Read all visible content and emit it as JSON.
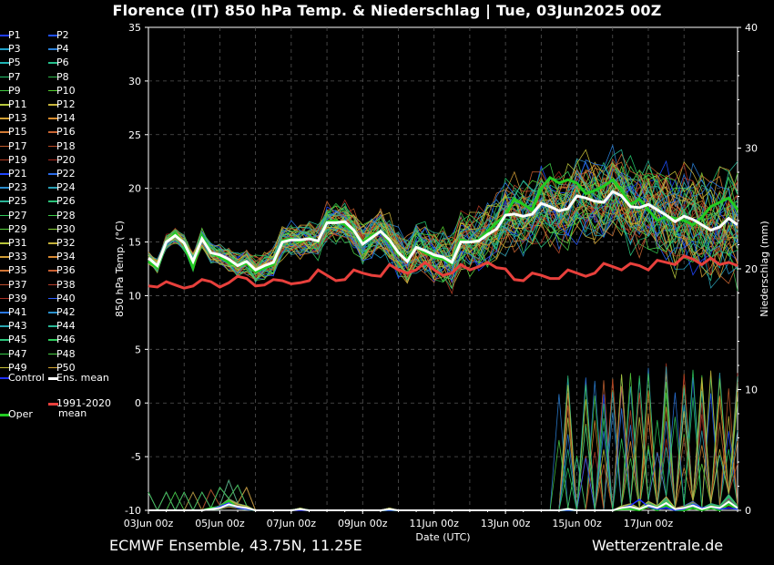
{
  "title": "Florence  (IT)  850 hPa Temp. & Niederschlag | Tue, 03Jun2025 00Z",
  "footer": {
    "source": "ECMWF Ensemble, 43.75N, 11.25E",
    "brand": "Wetterzentrale.de"
  },
  "legend": {
    "members": [
      "P1",
      "P2",
      "P3",
      "P4",
      "P5",
      "P6",
      "P7",
      "P8",
      "P9",
      "P10",
      "P11",
      "P12",
      "P13",
      "P14",
      "P15",
      "P16",
      "P17",
      "P18",
      "P19",
      "P20",
      "P21",
      "P22",
      "P23",
      "P24",
      "P25",
      "P26",
      "P27",
      "P28",
      "P29",
      "P30",
      "P31",
      "P32",
      "P33",
      "P34",
      "P35",
      "P36",
      "P37",
      "P38",
      "P39",
      "P40",
      "P41",
      "P42",
      "P43",
      "P44",
      "P45",
      "P46",
      "P47",
      "P48",
      "P49",
      "P50"
    ],
    "control": "Control",
    "ens_mean": "Ens. mean",
    "climate_line1": "1991-2020",
    "climate_line2": "mean",
    "oper": "Oper"
  },
  "chart_data": {
    "type": "line",
    "xlabel": "Date (UTC)",
    "ylabel": "850 hPa Temp. (°C)",
    "y2label": "Niederschlag (mm)",
    "ylim": [
      -10,
      35
    ],
    "y2lim": [
      0,
      40
    ],
    "yticks": [
      -10,
      -5,
      0,
      5,
      10,
      15,
      20,
      25,
      30,
      35
    ],
    "y2ticks": [
      0,
      10,
      20,
      30,
      40
    ],
    "xticks": [
      "03Jun 00z",
      "05Jun 00z",
      "07Jun 00z",
      "09Jun 00z",
      "11Jun 00z",
      "13Jun 00z",
      "15Jun 00z",
      "17Jun 00z"
    ],
    "time_step_hours": 6,
    "grid": true,
    "colors": {
      "ens_mean": "#ffffff",
      "oper": "#22cc22",
      "climate": "#e8403c",
      "control": "#2030ff"
    },
    "ens_mean_temp": [
      13.5,
      12.8,
      15.0,
      15.6,
      14.9,
      13.2,
      15.3,
      14.0,
      13.8,
      13.4,
      12.8,
      13.2,
      12.4,
      12.8,
      13.1,
      15.0,
      15.2,
      15.2,
      15.3,
      15.1,
      16.8,
      16.8,
      16.9,
      16.1,
      14.8,
      15.4,
      16.0,
      15.2,
      14.0,
      13.2,
      14.5,
      14.2,
      13.8,
      13.6,
      13.1,
      15.0,
      15.0,
      15.1,
      15.7,
      16.2,
      17.5,
      17.6,
      17.4,
      17.6,
      18.6,
      18.3,
      17.9,
      18.1,
      19.3,
      19.1,
      18.8,
      18.7,
      19.7,
      19.3,
      18.3,
      18.2,
      18.5,
      18.0,
      17.5,
      16.9,
      17.4,
      17.1,
      16.6,
      16.1,
      16.4,
      17.2,
      16.6
    ],
    "oper_temp": [
      13.2,
      12.6,
      15.0,
      15.8,
      14.8,
      12.6,
      15.6,
      14.0,
      13.6,
      13.1,
      12.8,
      13.0,
      12.2,
      12.6,
      12.9,
      15.1,
      15.3,
      15.0,
      15.4,
      15.0,
      16.9,
      17.0,
      16.6,
      16.0,
      15.0,
      15.6,
      16.0,
      15.0,
      13.9,
      13.4,
      14.5,
      14.0,
      13.6,
      13.4,
      13.0,
      15.2,
      15.0,
      15.2,
      16.0,
      16.8,
      17.5,
      19.0,
      18.5,
      18.0,
      20.0,
      21.0,
      20.5,
      20.8,
      20.5,
      19.5,
      19.8,
      20.2,
      20.8,
      19.8,
      18.5,
      19.0,
      18.0,
      17.0,
      17.4,
      17.2,
      17.0,
      16.6,
      17.3,
      18.3,
      18.7,
      19.1,
      18.0
    ],
    "climate_mean_temp": [
      10.9,
      10.8,
      11.3,
      11.0,
      10.7,
      10.9,
      11.5,
      11.3,
      10.8,
      11.2,
      11.8,
      11.6,
      10.9,
      11.0,
      11.5,
      11.4,
      11.1,
      11.2,
      11.4,
      12.4,
      11.9,
      11.4,
      11.5,
      12.4,
      12.1,
      11.9,
      11.8,
      12.9,
      12.4,
      12.1,
      12.4,
      13.1,
      12.4,
      11.9,
      12.1,
      12.9,
      12.4,
      12.7,
      13.1,
      12.6,
      12.5,
      11.5,
      11.4,
      12.1,
      11.9,
      11.6,
      11.6,
      12.4,
      12.1,
      11.8,
      12.1,
      13.0,
      12.7,
      12.4,
      13.0,
      12.8,
      12.4,
      13.3,
      13.1,
      12.9,
      13.7,
      13.4,
      12.9,
      13.5,
      12.9,
      13.1,
      12.8
    ],
    "ens_mean_precip": [
      0.0,
      0.0,
      0.0,
      0.0,
      0.0,
      0.0,
      0.0,
      0.1,
      0.2,
      0.5,
      0.3,
      0.2,
      0.0,
      0.0,
      0.0,
      0.0,
      0.0,
      0.1,
      0.0,
      0.0,
      0.0,
      0.0,
      0.0,
      0.0,
      0.0,
      0.0,
      0.0,
      0.1,
      0.0,
      0.0,
      0.0,
      0.0,
      0.0,
      0.0,
      0.0,
      0.0,
      0.0,
      0.0,
      0.0,
      0.0,
      0.0,
      0.0,
      0.0,
      0.0,
      0.0,
      0.0,
      0.0,
      0.1,
      0.0,
      0.0,
      0.0,
      0.0,
      0.0,
      0.2,
      0.3,
      0.1,
      0.4,
      0.2,
      0.6,
      0.1,
      0.2,
      0.4,
      0.1,
      0.3,
      0.2,
      0.7,
      0.2
    ],
    "oper_precip": [
      0.0,
      0.0,
      0.0,
      0.0,
      0.0,
      0.0,
      0.0,
      0.2,
      0.3,
      0.8,
      0.2,
      0.1,
      0.0,
      0.0,
      0.0,
      0.0,
      0.0,
      0.1,
      0.0,
      0.0,
      0.0,
      0.0,
      0.0,
      0.0,
      0.0,
      0.0,
      0.0,
      0.0,
      0.0,
      0.0,
      0.0,
      0.0,
      0.0,
      0.0,
      0.0,
      0.0,
      0.0,
      0.0,
      0.0,
      0.0,
      0.0,
      0.0,
      0.0,
      0.0,
      0.0,
      0.0,
      0.0,
      0.0,
      0.0,
      0.0,
      0.0,
      0.0,
      0.0,
      0.1,
      0.1,
      0.0,
      0.3,
      0.0,
      0.4,
      0.0,
      0.0,
      0.2,
      0.0,
      0.2,
      0.0,
      0.5,
      0.1
    ],
    "control_precip": [
      0.0,
      0.0,
      0.0,
      0.0,
      0.0,
      0.0,
      0.0,
      0.1,
      0.3,
      0.6,
      0.2,
      0.1,
      0.0,
      0.0,
      0.0,
      0.0,
      0.0,
      0.0,
      0.0,
      0.0,
      0.0,
      0.0,
      0.0,
      0.0,
      0.0,
      0.0,
      0.0,
      0.0,
      0.0,
      0.0,
      0.0,
      0.0,
      0.0,
      0.0,
      0.0,
      0.0,
      0.0,
      0.0,
      0.0,
      0.0,
      0.0,
      0.0,
      0.0,
      0.0,
      0.0,
      0.0,
      0.0,
      0.0,
      0.0,
      0.0,
      0.0,
      0.0,
      0.0,
      0.2,
      0.4,
      0.9,
      0.3,
      0.1,
      0.2,
      0.0,
      0.1,
      0.5,
      0.2,
      0.3,
      0.1,
      0.2,
      0.1
    ],
    "member_colors": [
      "#1f3cff",
      "#2050ff",
      "#1ea0c8",
      "#2a7fd6",
      "#1fb4b4",
      "#25c08c",
      "#23c46a",
      "#2eb84a",
      "#40c840",
      "#55d030",
      "#b7c83c",
      "#c8b43a",
      "#d2a032",
      "#d88c2e",
      "#d27a34",
      "#c86432",
      "#c05a2a",
      "#b84a26",
      "#b03a22",
      "#a82a1e",
      "#2046ff",
      "#2a6ae6",
      "#2b8ccc",
      "#2ba0b4",
      "#2ab496",
      "#2ac078",
      "#30c85a",
      "#3ccc46",
      "#58d23c",
      "#88d436",
      "#b8c43a",
      "#c4b03a",
      "#d09c36",
      "#d68832",
      "#d07434",
      "#c65e30",
      "#bc4c2c",
      "#b43c28",
      "#ac2e22",
      "#2a5cff",
      "#2a78e6",
      "#2a90cc",
      "#2aa6b2",
      "#2ab896",
      "#2ac47a",
      "#2ecc5c",
      "#36cc48",
      "#4ad046",
      "#c8c038",
      "#d6a632"
    ]
  }
}
